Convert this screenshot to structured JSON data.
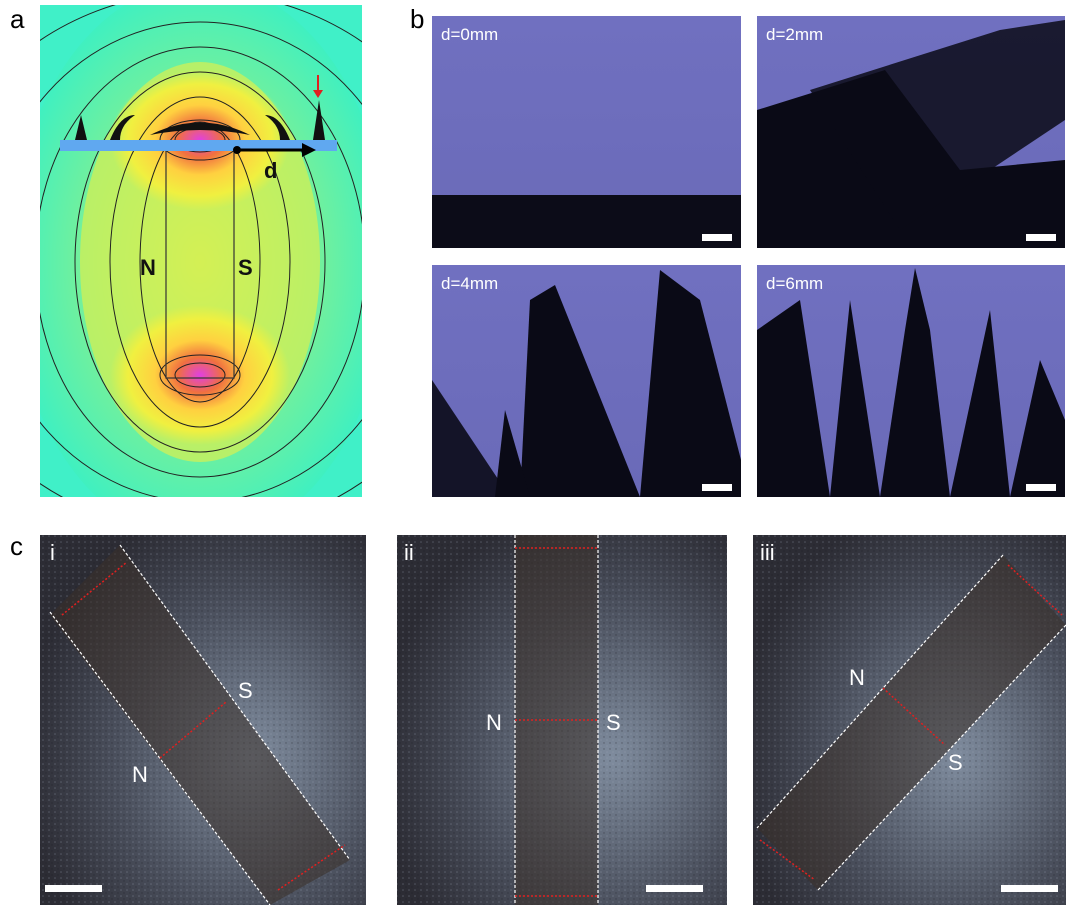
{
  "panel_a": {
    "label": "a",
    "north": "N",
    "south": "S",
    "distance": "d"
  },
  "panel_b": {
    "label": "b",
    "images": [
      "d=0mm",
      "d=2mm",
      "d=4mm",
      "d=6mm"
    ]
  },
  "panel_c": {
    "label": "c",
    "images": [
      {
        "label": "i",
        "north": "N",
        "south": "S"
      },
      {
        "label": "ii",
        "north": "N",
        "south": "S"
      },
      {
        "label": "iii",
        "north": "N",
        "south": "S"
      }
    ]
  }
}
